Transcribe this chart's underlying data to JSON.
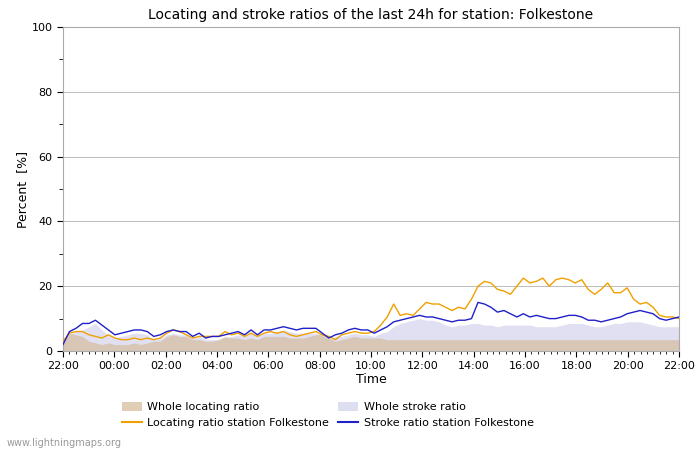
{
  "title": "Locating and stroke ratios of the last 24h for station: Folkestone",
  "xlabel": "Time",
  "ylabel": "Percent  [%]",
  "ylim": [
    0,
    100
  ],
  "yticks": [
    0,
    20,
    40,
    60,
    80,
    100
  ],
  "ytick_minor": [
    10,
    30,
    50,
    70,
    90
  ],
  "xtick_labels": [
    "22:00",
    "00:00",
    "02:00",
    "04:00",
    "06:00",
    "08:00",
    "10:00",
    "12:00",
    "14:00",
    "16:00",
    "18:00",
    "20:00",
    "22:00"
  ],
  "watermark": "www.lightningmaps.org",
  "background_color": "#ffffff",
  "plot_bg_color": "#ffffff",
  "grid_color": "#bbbbbb",
  "whole_locating_fill_color": "#d4b896",
  "whole_stroke_fill_color": "#c8c8e8",
  "locating_line_color": "#f0a000",
  "stroke_line_color": "#2020c8",
  "whole_locating_ratio": [
    3.5,
    5.5,
    5.0,
    4.5,
    3.0,
    2.5,
    2.0,
    2.5,
    2.0,
    2.0,
    2.0,
    2.5,
    2.0,
    2.5,
    3.0,
    3.0,
    4.5,
    5.0,
    4.5,
    4.5,
    3.5,
    3.5,
    3.0,
    3.0,
    3.5,
    4.5,
    4.0,
    4.0,
    3.5,
    4.0,
    3.5,
    4.5,
    4.5,
    4.5,
    4.5,
    4.0,
    4.0,
    4.0,
    4.5,
    5.0,
    5.5,
    4.0,
    3.0,
    3.5,
    4.0,
    4.5,
    4.0,
    4.0,
    4.0,
    4.0,
    3.5,
    3.5,
    3.5,
    3.5,
    3.5,
    3.5,
    3.5,
    3.5,
    3.5,
    3.5,
    3.5,
    3.5,
    3.5,
    3.5,
    3.5,
    3.5,
    3.5,
    3.5,
    3.5,
    3.5,
    3.5,
    3.5,
    3.5,
    3.5,
    3.5,
    3.5,
    3.5,
    3.5,
    3.5,
    3.5,
    3.5,
    3.5,
    3.5,
    3.5,
    3.5,
    3.5,
    3.5,
    3.5,
    3.5,
    3.5,
    3.5,
    3.5,
    3.5,
    3.5,
    3.5,
    3.5
  ],
  "whole_stroke_ratio": [
    2.5,
    5.0,
    6.0,
    6.5,
    7.5,
    8.5,
    6.5,
    5.0,
    4.0,
    4.5,
    5.0,
    5.5,
    5.5,
    5.0,
    3.5,
    4.0,
    5.0,
    5.5,
    5.0,
    5.0,
    4.0,
    4.5,
    3.5,
    3.5,
    3.5,
    4.0,
    4.5,
    5.0,
    4.5,
    5.5,
    4.5,
    5.5,
    5.5,
    6.0,
    6.5,
    6.0,
    5.5,
    5.5,
    5.5,
    5.5,
    4.5,
    3.5,
    4.5,
    4.5,
    5.0,
    5.5,
    5.0,
    5.0,
    4.5,
    5.5,
    6.0,
    7.5,
    8.5,
    9.0,
    9.5,
    10.0,
    9.5,
    9.5,
    9.0,
    8.0,
    7.5,
    8.0,
    8.0,
    8.5,
    8.5,
    8.0,
    8.0,
    7.5,
    8.0,
    8.0,
    8.0,
    8.0,
    8.0,
    7.5,
    7.5,
    7.5,
    7.5,
    8.0,
    8.5,
    8.5,
    8.5,
    8.0,
    7.5,
    7.5,
    8.0,
    8.5,
    8.5,
    9.0,
    9.0,
    9.0,
    8.5,
    8.0,
    7.5,
    7.5,
    7.5,
    7.5
  ],
  "locating_ratio_station": [
    3.0,
    5.5,
    6.0,
    6.0,
    5.0,
    4.5,
    4.0,
    5.0,
    4.0,
    3.5,
    3.5,
    4.0,
    3.5,
    4.0,
    3.5,
    4.0,
    5.5,
    6.5,
    6.0,
    5.0,
    4.0,
    4.5,
    4.5,
    4.5,
    4.5,
    6.0,
    5.0,
    5.5,
    4.5,
    5.5,
    4.5,
    5.5,
    6.0,
    5.5,
    6.0,
    5.0,
    4.5,
    5.0,
    5.5,
    6.0,
    5.0,
    4.5,
    3.5,
    5.0,
    5.5,
    6.0,
    5.5,
    5.5,
    6.0,
    8.0,
    10.5,
    14.5,
    11.0,
    11.5,
    11.0,
    13.0,
    15.0,
    14.5,
    14.5,
    13.5,
    12.5,
    13.5,
    13.0,
    16.0,
    20.0,
    21.5,
    21.0,
    19.0,
    18.5,
    17.5,
    20.0,
    22.5,
    21.0,
    21.5,
    22.5,
    20.0,
    22.0,
    22.5,
    22.0,
    21.0,
    22.0,
    19.0,
    17.5,
    19.0,
    21.0,
    18.0,
    18.0,
    19.5,
    16.0,
    14.5,
    15.0,
    13.5,
    11.0,
    10.5,
    10.5,
    10.0
  ],
  "stroke_ratio_station": [
    2.0,
    6.0,
    7.0,
    8.5,
    8.5,
    9.5,
    8.0,
    6.5,
    5.0,
    5.5,
    6.0,
    6.5,
    6.5,
    6.0,
    4.5,
    5.0,
    6.0,
    6.5,
    6.0,
    6.0,
    4.5,
    5.5,
    4.0,
    4.5,
    4.5,
    5.0,
    5.5,
    6.0,
    5.0,
    6.5,
    5.0,
    6.5,
    6.5,
    7.0,
    7.5,
    7.0,
    6.5,
    7.0,
    7.0,
    7.0,
    5.5,
    4.0,
    5.0,
    5.5,
    6.5,
    7.0,
    6.5,
    6.5,
    5.5,
    6.5,
    7.5,
    9.0,
    9.5,
    10.0,
    10.5,
    11.0,
    10.5,
    10.5,
    10.0,
    9.5,
    9.0,
    9.5,
    9.5,
    10.0,
    15.0,
    14.5,
    13.5,
    12.0,
    12.5,
    11.5,
    10.5,
    11.5,
    10.5,
    11.0,
    10.5,
    10.0,
    10.0,
    10.5,
    11.0,
    11.0,
    10.5,
    9.5,
    9.5,
    9.0,
    9.5,
    10.0,
    10.5,
    11.5,
    12.0,
    12.5,
    12.0,
    11.5,
    10.0,
    9.5,
    10.0,
    10.5
  ]
}
